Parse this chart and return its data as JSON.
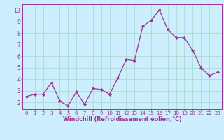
{
  "x": [
    0,
    1,
    2,
    3,
    4,
    5,
    6,
    7,
    8,
    9,
    10,
    11,
    12,
    13,
    14,
    15,
    16,
    17,
    18,
    19,
    20,
    21,
    22,
    23
  ],
  "y": [
    2.5,
    2.7,
    2.7,
    3.7,
    2.1,
    1.7,
    2.9,
    1.8,
    3.2,
    3.1,
    2.7,
    4.1,
    5.7,
    5.6,
    8.6,
    9.1,
    10.0,
    8.3,
    7.6,
    7.6,
    6.5,
    5.0,
    4.3,
    4.6
  ],
  "line_color": "#993399",
  "marker": "D",
  "marker_size": 2.0,
  "line_width": 0.9,
  "xlabel": "Windchill (Refroidissement éolien,°C)",
  "xlim": [
    -0.5,
    23.5
  ],
  "ylim": [
    1.4,
    10.5
  ],
  "yticks": [
    2,
    3,
    4,
    5,
    6,
    7,
    8,
    9,
    10
  ],
  "xticks": [
    0,
    1,
    2,
    3,
    4,
    5,
    6,
    7,
    8,
    9,
    10,
    11,
    12,
    13,
    14,
    15,
    16,
    17,
    18,
    19,
    20,
    21,
    22,
    23
  ],
  "bg_color": "#cceeff",
  "grid_color": "#aaddcc",
  "tick_color": "#993399",
  "label_color": "#993399",
  "spine_color": "#993399",
  "xlabel_fontsize": 5.8,
  "tick_fontsize_x": 5.0,
  "tick_fontsize_y": 5.5
}
